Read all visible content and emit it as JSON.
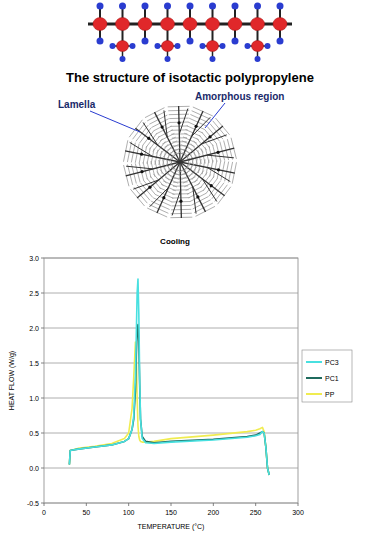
{
  "diagram": {
    "molecule_caption": "The structure of isotactic polypropylene",
    "spherulite_labels": [
      "Lamella",
      "Amorphous region"
    ]
  },
  "chart_data": {
    "type": "line",
    "title": "Cooling",
    "x_label": "TEMPERATURE (°C)",
    "y_label": "HEAT FLOW (W/g)",
    "x": [
      30,
      31,
      40,
      60,
      80,
      95,
      100,
      104,
      106,
      108,
      109,
      110,
      111,
      112,
      113,
      114,
      116,
      120,
      130,
      150,
      200,
      240,
      250,
      255,
      258,
      260,
      262,
      264,
      266
    ],
    "series": [
      {
        "name": "PC3",
        "color": "#48e0e0",
        "values": [
          0.05,
          0.25,
          0.27,
          0.3,
          0.33,
          0.38,
          0.42,
          0.55,
          0.75,
          1.3,
          1.9,
          2.5,
          2.7,
          2.2,
          1.3,
          0.7,
          0.42,
          0.36,
          0.35,
          0.37,
          0.4,
          0.44,
          0.46,
          0.48,
          0.52,
          0.5,
          0.3,
          0.0,
          -0.1
        ]
      },
      {
        "name": "PC1",
        "color": "#1f6b5e",
        "values": [
          0.05,
          0.25,
          0.27,
          0.3,
          0.33,
          0.38,
          0.42,
          0.55,
          0.7,
          1.1,
          1.6,
          1.95,
          2.05,
          1.8,
          1.2,
          0.7,
          0.45,
          0.38,
          0.36,
          0.38,
          0.41,
          0.45,
          0.47,
          0.5,
          0.52,
          0.5,
          0.3,
          0.0,
          -0.1
        ]
      },
      {
        "name": "PP",
        "color": "#f0ec50",
        "values": [
          0.05,
          0.25,
          0.28,
          0.31,
          0.35,
          0.42,
          0.5,
          0.85,
          1.3,
          1.8,
          1.6,
          1.0,
          0.6,
          0.45,
          0.4,
          0.38,
          0.37,
          0.37,
          0.38,
          0.42,
          0.47,
          0.52,
          0.54,
          0.56,
          0.58,
          0.52,
          0.3,
          0.0,
          -0.1
        ]
      }
    ],
    "xlim": [
      0,
      300
    ],
    "xticks": [
      0,
      50,
      100,
      150,
      200,
      250,
      300
    ],
    "ylim": [
      -0.5,
      3.0
    ],
    "yticks": [
      -0.5,
      {
        "value": 0,
        "label": "0.0"
      },
      0.5,
      {
        "value": 1,
        "label": "1.0"
      },
      1.5,
      {
        "value": 2,
        "label": "2.0"
      },
      2.5,
      {
        "value": 3,
        "label": "3.0"
      }
    ],
    "grid": true,
    "legend": "right"
  }
}
